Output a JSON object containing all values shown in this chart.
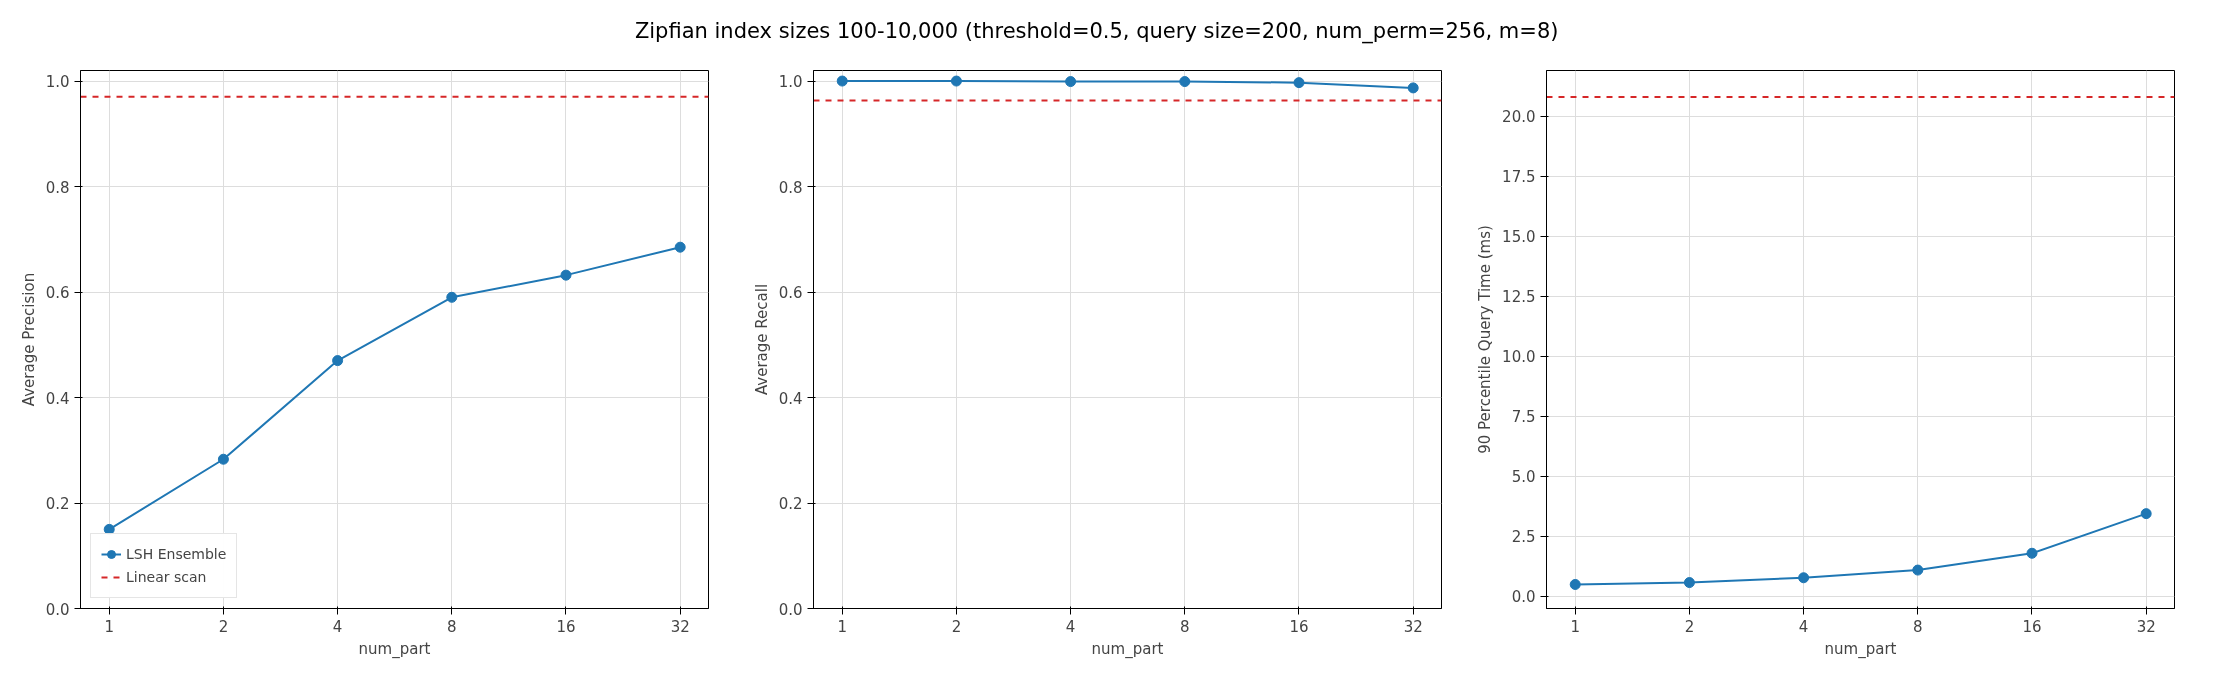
{
  "chart_data": [
    {
      "type": "line",
      "xlabel": "num_part",
      "ylabel": "Average Precision",
      "x": [
        1,
        2,
        4,
        8,
        16,
        32
      ],
      "log": "x",
      "xlim": [
        0.84,
        38
      ],
      "xticks": [
        1,
        2,
        4,
        8,
        16,
        32
      ],
      "ylim": [
        0,
        1.02
      ],
      "yticks": [
        {
          "value": 0,
          "label": "0.0"
        },
        0.2,
        0.4,
        0.6,
        0.8,
        {
          "value": 1,
          "label": "1.0"
        }
      ],
      "grid": true,
      "marker": "circle",
      "line_style": "solid",
      "legend": "bottom left",
      "series": [
        {
          "name": "LSH Ensemble",
          "color": "#1f77b4",
          "values": [
            0.15,
            0.283,
            0.47,
            0.59,
            0.632,
            0.685
          ]
        }
      ],
      "ref_lines": [
        {
          "axis": "y",
          "value": 0.97,
          "label": "Linear scan",
          "color": "#d62728",
          "line_style": "dashed"
        }
      ]
    },
    {
      "type": "line",
      "title": "Zipfian index sizes 100-10,000  (threshold=0.5, query size=200, num_perm=256, m=8)",
      "xlabel": "num_part",
      "ylabel": "Average Recall",
      "x": [
        1,
        2,
        4,
        8,
        16,
        32
      ],
      "log": "x",
      "xlim": [
        0.84,
        38
      ],
      "xticks": [
        1,
        2,
        4,
        8,
        16,
        32
      ],
      "ylim": [
        0,
        1.02
      ],
      "yticks": [
        {
          "value": 0,
          "label": "0.0"
        },
        0.2,
        0.4,
        0.6,
        0.8,
        {
          "value": 1,
          "label": "1.0"
        }
      ],
      "grid": true,
      "marker": "circle",
      "line_style": "solid",
      "series": [
        {
          "color": "#1f77b4",
          "values": [
            1.0,
            1.0,
            0.999,
            0.999,
            0.997,
            0.987
          ]
        }
      ],
      "ref_lines": [
        {
          "axis": "y",
          "value": 0.963,
          "color": "#d62728",
          "line_style": "dashed"
        }
      ]
    },
    {
      "type": "line",
      "xlabel": "num_part",
      "ylabel": "90 Percentile Query Time (ms)",
      "x": [
        1,
        2,
        4,
        8,
        16,
        32
      ],
      "log": "x",
      "xlim": [
        0.84,
        38
      ],
      "xticks": [
        1,
        2,
        4,
        8,
        16,
        32
      ],
      "ylim": [
        -0.5,
        21.9
      ],
      "yticks": [
        {
          "value": 0,
          "label": "0.0"
        },
        2.5,
        {
          "value": 5,
          "label": "5.0"
        },
        7.5,
        {
          "value": 10,
          "label": "10.0"
        },
        12.5,
        {
          "value": 15,
          "label": "15.0"
        },
        17.5,
        {
          "value": 20,
          "label": "20.0"
        }
      ],
      "grid": true,
      "marker": "circle",
      "line_style": "solid",
      "series": [
        {
          "color": "#1f77b4",
          "values": [
            0.5,
            0.58,
            0.78,
            1.1,
            1.8,
            3.45
          ]
        }
      ],
      "ref_lines": [
        {
          "axis": "y",
          "value": 20.8,
          "color": "#d62728",
          "line_style": "dashed"
        }
      ]
    }
  ]
}
